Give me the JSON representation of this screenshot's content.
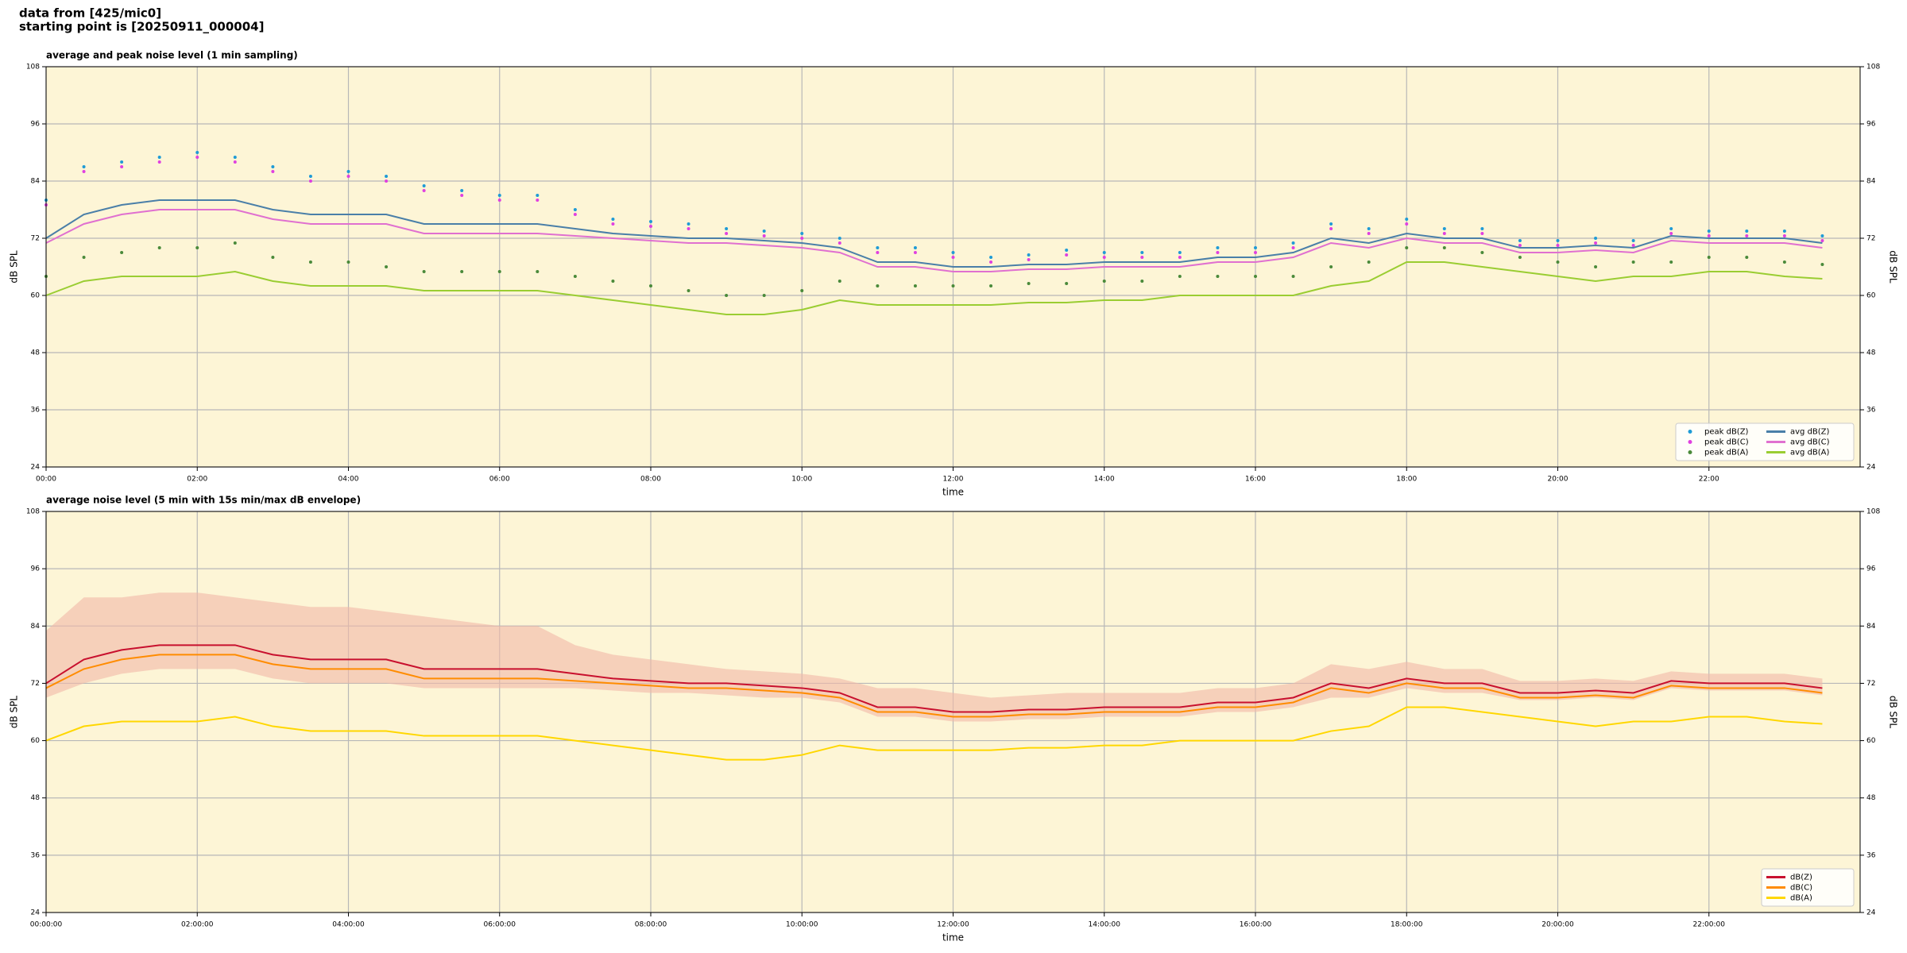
{
  "page_title": [
    "data from [425/mic0]",
    "starting point is [20250911_000004]"
  ],
  "chart_data": [
    {
      "type": "line",
      "title": "average and peak noise level (1 min sampling)",
      "xlabel": "time",
      "ylabel": "dB SPL",
      "xlim": [
        0,
        24
      ],
      "ylim": [
        24,
        108
      ],
      "yticks": [
        24,
        36,
        48,
        60,
        72,
        84,
        96,
        108
      ],
      "xticks": [
        {
          "value": 0,
          "label": "00:00"
        },
        {
          "value": 2,
          "label": "02:00"
        },
        {
          "value": 4,
          "label": "04:00"
        },
        {
          "value": 6,
          "label": "06:00"
        },
        {
          "value": 8,
          "label": "08:00"
        },
        {
          "value": 10,
          "label": "10:00"
        },
        {
          "value": 12,
          "label": "12:00"
        },
        {
          "value": 14,
          "label": "14:00"
        },
        {
          "value": 16,
          "label": "16:00"
        },
        {
          "value": 18,
          "label": "18:00"
        },
        {
          "value": 20,
          "label": "20:00"
        },
        {
          "value": 22,
          "label": "22:00"
        }
      ],
      "grid": true,
      "legend": "lower right",
      "legend_columns": 2,
      "background": "#fdf5d6",
      "x": [
        0,
        0.5,
        1,
        1.5,
        2,
        2.5,
        3,
        3.5,
        4,
        4.5,
        5,
        5.5,
        6,
        6.5,
        7,
        7.5,
        8,
        8.5,
        9,
        9.5,
        10,
        10.5,
        11,
        11.5,
        12,
        12.5,
        13,
        13.5,
        14,
        14.5,
        15,
        15.5,
        16,
        16.5,
        17,
        17.5,
        18,
        18.5,
        19,
        19.5,
        20,
        20.5,
        21,
        21.5,
        22,
        22.5,
        23,
        23.5
      ],
      "series": [
        {
          "name": "peak dB(Z)",
          "color": "#1f9bd6",
          "style": "points",
          "values": [
            80,
            87,
            88,
            89,
            90,
            89,
            87,
            85,
            86,
            85,
            83,
            82,
            81,
            81,
            78,
            76,
            75.5,
            75,
            74,
            73.5,
            73,
            72,
            70,
            70,
            69,
            68,
            68.5,
            69.5,
            69,
            69,
            69,
            70,
            70,
            71,
            75,
            74,
            76,
            74,
            74,
            71.5,
            71.5,
            72,
            71.5,
            74,
            73.5,
            73.5,
            73.5,
            72.5
          ]
        },
        {
          "name": "peak dB(C)",
          "color": "#e040e0",
          "style": "points",
          "values": [
            79,
            86,
            87,
            88,
            89,
            88,
            86,
            84,
            85,
            84,
            82,
            81,
            80,
            80,
            77,
            75,
            74.5,
            74,
            73,
            72.5,
            72,
            71,
            69,
            69,
            68,
            67,
            67.5,
            68.5,
            68,
            68,
            68,
            69,
            69,
            70,
            74,
            73,
            75,
            73,
            73,
            70.5,
            70.5,
            71,
            70.5,
            73,
            72.5,
            72.5,
            72.5,
            71.5
          ]
        },
        {
          "name": "peak dB(A)",
          "color": "#4a8a3a",
          "style": "points",
          "values": [
            64,
            68,
            69,
            70,
            70,
            71,
            68,
            67,
            67,
            66,
            65,
            65,
            65,
            65,
            64,
            63,
            62,
            61,
            60,
            60,
            61,
            63,
            62,
            62,
            62,
            62,
            62.5,
            62.5,
            63,
            63,
            64,
            64,
            64,
            64,
            66,
            67,
            70,
            70,
            69,
            68,
            67,
            66,
            67,
            67,
            68,
            68,
            67,
            66.5
          ]
        },
        {
          "name": "avg dB(Z)",
          "color": "#4a7fa8",
          "style": "line",
          "values": [
            72,
            77,
            79,
            80,
            80,
            80,
            78,
            77,
            77,
            77,
            75,
            75,
            75,
            75,
            74,
            73,
            72.5,
            72,
            72,
            71.5,
            71,
            70,
            67,
            67,
            66,
            66,
            66.5,
            66.5,
            67,
            67,
            67,
            68,
            68,
            69,
            72,
            71,
            73,
            72,
            72,
            70,
            70,
            70.5,
            70,
            72.5,
            72,
            72,
            72,
            71
          ]
        },
        {
          "name": "avg dB(C)",
          "color": "#e070d0",
          "style": "line",
          "values": [
            71,
            75,
            77,
            78,
            78,
            78,
            76,
            75,
            75,
            75,
            73,
            73,
            73,
            73,
            72.5,
            72,
            71.5,
            71,
            71,
            70.5,
            70,
            69,
            66,
            66,
            65,
            65,
            65.5,
            65.5,
            66,
            66,
            66,
            67,
            67,
            68,
            71,
            70,
            72,
            71,
            71,
            69,
            69,
            69.5,
            69,
            71.5,
            71,
            71,
            71,
            70
          ]
        },
        {
          "name": "avg dB(A)",
          "color": "#9acd32",
          "style": "line",
          "values": [
            60,
            63,
            64,
            64,
            64,
            65,
            63,
            62,
            62,
            62,
            61,
            61,
            61,
            61,
            60,
            59,
            58,
            57,
            56,
            56,
            57,
            59,
            58,
            58,
            58,
            58,
            58.5,
            58.5,
            59,
            59,
            60,
            60,
            60,
            60,
            62,
            63,
            67,
            67,
            66,
            65,
            64,
            63,
            64,
            64,
            65,
            65,
            64,
            63.5
          ]
        }
      ]
    },
    {
      "type": "line",
      "title": "average noise level (5 min with 15s min/max dB envelope)",
      "xlabel": "time",
      "ylabel": "dB SPL",
      "xlim": [
        0,
        24
      ],
      "ylim": [
        24,
        108
      ],
      "yticks": [
        24,
        36,
        48,
        60,
        72,
        84,
        96,
        108
      ],
      "xticks": [
        {
          "value": 0,
          "label": "00:00:00"
        },
        {
          "value": 2,
          "label": "02:00:00"
        },
        {
          "value": 4,
          "label": "04:00:00"
        },
        {
          "value": 6,
          "label": "06:00:00"
        },
        {
          "value": 8,
          "label": "08:00:00"
        },
        {
          "value": 10,
          "label": "10:00:00"
        },
        {
          "value": 12,
          "label": "12:00:00"
        },
        {
          "value": 14,
          "label": "14:00:00"
        },
        {
          "value": 16,
          "label": "16:00:00"
        },
        {
          "value": 18,
          "label": "18:00:00"
        },
        {
          "value": 20,
          "label": "20:00:00"
        },
        {
          "value": 22,
          "label": "22:00:00"
        }
      ],
      "grid": true,
      "legend": "lower right",
      "legend_columns": 1,
      "background": "#fdf5d6",
      "x": [
        0,
        0.5,
        1,
        1.5,
        2,
        2.5,
        3,
        3.5,
        4,
        4.5,
        5,
        5.5,
        6,
        6.5,
        7,
        7.5,
        8,
        8.5,
        9,
        9.5,
        10,
        10.5,
        11,
        11.5,
        12,
        12.5,
        13,
        13.5,
        14,
        14.5,
        15,
        15.5,
        16,
        16.5,
        17,
        17.5,
        18,
        18.5,
        19,
        19.5,
        20,
        20.5,
        21,
        21.5,
        22,
        22.5,
        23,
        23.5
      ],
      "envelope": {
        "color": "#f2b8a6",
        "low": [
          69,
          72,
          74,
          75,
          75,
          75,
          73,
          72,
          72,
          72,
          71,
          71,
          71,
          71,
          71,
          70.5,
          70,
          70,
          69.5,
          69,
          69,
          68,
          65,
          65,
          64,
          64,
          64.5,
          64.5,
          65,
          65,
          65,
          66,
          66,
          67,
          69,
          69,
          71,
          70,
          70,
          68.5,
          68.5,
          69,
          68.5,
          71,
          70.5,
          70.5,
          70.5,
          69.5
        ],
        "high": [
          83,
          90,
          90,
          91,
          91,
          90,
          89,
          88,
          88,
          87,
          86,
          85,
          84,
          84,
          80,
          78,
          77,
          76,
          75,
          74.5,
          74,
          73,
          71,
          71,
          70,
          69,
          69.5,
          70,
          70,
          70,
          70,
          71,
          71,
          72,
          76,
          75,
          76.5,
          75,
          75,
          72.5,
          72.5,
          73,
          72.5,
          74.5,
          74,
          74,
          74,
          73
        ]
      },
      "series": [
        {
          "name": "dB(Z)",
          "color": "#c8102e",
          "style": "line",
          "values": [
            72,
            77,
            79,
            80,
            80,
            80,
            78,
            77,
            77,
            77,
            75,
            75,
            75,
            75,
            74,
            73,
            72.5,
            72,
            72,
            71.5,
            71,
            70,
            67,
            67,
            66,
            66,
            66.5,
            66.5,
            67,
            67,
            67,
            68,
            68,
            69,
            72,
            71,
            73,
            72,
            72,
            70,
            70,
            70.5,
            70,
            72.5,
            72,
            72,
            72,
            71
          ]
        },
        {
          "name": "dB(C)",
          "color": "#ff8c00",
          "style": "line",
          "values": [
            71,
            75,
            77,
            78,
            78,
            78,
            76,
            75,
            75,
            75,
            73,
            73,
            73,
            73,
            72.5,
            72,
            71.5,
            71,
            71,
            70.5,
            70,
            69,
            66,
            66,
            65,
            65,
            65.5,
            65.5,
            66,
            66,
            66,
            67,
            67,
            68,
            71,
            70,
            72,
            71,
            71,
            69,
            69,
            69.5,
            69,
            71.5,
            71,
            71,
            71,
            70
          ]
        },
        {
          "name": "dB(A)",
          "color": "#ffd700",
          "style": "line",
          "values": [
            60,
            63,
            64,
            64,
            64,
            65,
            63,
            62,
            62,
            62,
            61,
            61,
            61,
            61,
            60,
            59,
            58,
            57,
            56,
            56,
            57,
            59,
            58,
            58,
            58,
            58,
            58.5,
            58.5,
            59,
            59,
            60,
            60,
            60,
            60,
            62,
            63,
            67,
            67,
            66,
            65,
            64,
            63,
            64,
            64,
            65,
            65,
            64,
            63.5
          ]
        }
      ]
    }
  ]
}
